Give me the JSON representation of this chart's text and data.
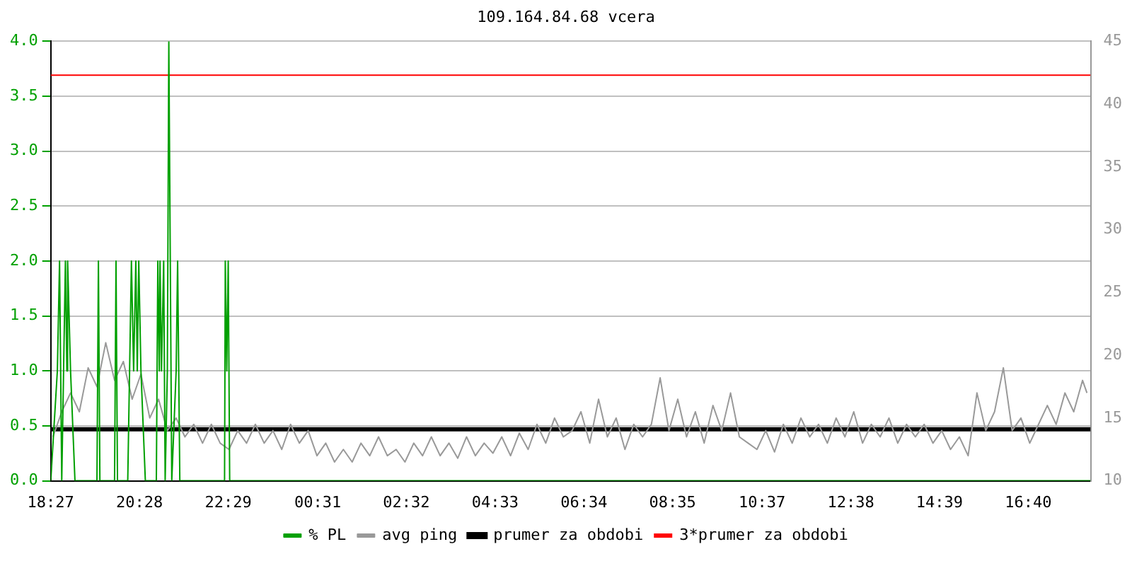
{
  "chart_data": {
    "type": "line",
    "title": "109.164.84.68 vcera",
    "xlim": [
      "--01-01T18:27",
      "--01-02T18:05"
    ],
    "xticks": [
      {
        "value": "--01-01T18:27",
        "label": "18:27"
      },
      {
        "value": "--01-01T20:28",
        "label": "20:28"
      },
      {
        "value": "--01-01T22:29",
        "label": "22:29"
      },
      {
        "value": "--01-02T00:31",
        "label": "00:31"
      },
      {
        "value": "--01-02T02:32",
        "label": "02:32"
      },
      {
        "value": "--01-02T04:33",
        "label": "04:33"
      },
      {
        "value": "--01-02T06:34",
        "label": "06:34"
      },
      {
        "value": "--01-02T08:35",
        "label": "08:35"
      },
      {
        "value": "--01-02T10:37",
        "label": "10:37"
      },
      {
        "value": "--01-02T12:38",
        "label": "12:38"
      },
      {
        "value": "--01-02T14:39",
        "label": "14:39"
      },
      {
        "value": "--01-02T16:40",
        "label": "16:40"
      }
    ],
    "ylim": [
      0,
      4
    ],
    "yticks": [
      {
        "value": 0,
        "label": "0.0"
      },
      {
        "value": 0.5,
        "label": "0.5"
      },
      {
        "value": 1,
        "label": "1.0"
      },
      {
        "value": 1.5,
        "label": "1.5"
      },
      {
        "value": 2,
        "label": "2.0"
      },
      {
        "value": 2.5,
        "label": "2.5"
      },
      {
        "value": 3,
        "label": "3.0"
      },
      {
        "value": 3.5,
        "label": "3.5"
      },
      {
        "value": 4,
        "label": "4.0"
      }
    ],
    "y2lim": [
      10,
      45
    ],
    "y2ticks": [
      10,
      15,
      20,
      25,
      30,
      35,
      40,
      45
    ],
    "grid": "y",
    "legend": "bottom",
    "marker": "none",
    "series": [
      {
        "name": "% PL",
        "color": "#00a000",
        "x": [
          "--01-01T18:27",
          "--01-01T18:36",
          "--01-01T18:39",
          "--01-01T18:42",
          "--01-01T18:47",
          "--01-01T18:49",
          "--01-01T18:50",
          "--01-01T18:54",
          "--01-01T19:00",
          "--01-01T19:30",
          "--01-01T19:32",
          "--01-01T19:34",
          "--01-01T19:54",
          "--01-01T19:56",
          "--01-01T19:58",
          "--01-01T20:12",
          "--01-01T20:17",
          "--01-01T20:20",
          "--01-01T20:23",
          "--01-01T20:25",
          "--01-01T20:27",
          "--01-01T20:30",
          "--01-01T20:36",
          "--01-01T20:51",
          "--01-01T20:53",
          "--01-01T20:55",
          "--01-01T20:56",
          "--01-01T20:58",
          "--01-01T21:01",
          "--01-01T21:03",
          "--01-01T21:06",
          "--01-01T21:08",
          "--01-01T21:12",
          "--01-01T21:18",
          "--01-01T21:20",
          "--01-01T21:23",
          "--01-01T21:36",
          "--01-01T22:24",
          "--01-01T22:25",
          "--01-01T22:27",
          "--01-01T22:29",
          "--01-01T22:31",
          "--01-01T23:00",
          "--01-02T18:05"
        ],
        "values": [
          0,
          1,
          2,
          0,
          2,
          1,
          2,
          1,
          0,
          0,
          2,
          0,
          0,
          2,
          0,
          0,
          2,
          1,
          2,
          1,
          2,
          1,
          0,
          0,
          2,
          1,
          2,
          1,
          2,
          0,
          1,
          4,
          0,
          1,
          2,
          0,
          0,
          0,
          2,
          1,
          2,
          0,
          0,
          0
        ]
      },
      {
        "name": "avg ping",
        "color": "#999999",
        "axis": "y2",
        "x": [
          "--01-01T18:30",
          "--01-01T18:42",
          "--01-01T18:54",
          "--01-01T19:06",
          "--01-01T19:18",
          "--01-01T19:30",
          "--01-01T19:42",
          "--01-01T19:54",
          "--01-01T20:06",
          "--01-01T20:18",
          "--01-01T20:30",
          "--01-01T20:42",
          "--01-01T20:54",
          "--01-01T21:06",
          "--01-01T21:18",
          "--01-01T21:30",
          "--01-01T21:42",
          "--01-01T21:54",
          "--01-01T22:06",
          "--01-01T22:18",
          "--01-01T22:30",
          "--01-01T22:42",
          "--01-01T22:54",
          "--01-01T23:06",
          "--01-01T23:18",
          "--01-01T23:30",
          "--01-01T23:42",
          "--01-01T23:54",
          "--01-02T00:06",
          "--01-02T00:18",
          "--01-02T00:30",
          "--01-02T00:42",
          "--01-02T00:54",
          "--01-02T01:06",
          "--01-02T01:18",
          "--01-02T01:30",
          "--01-02T01:42",
          "--01-02T01:54",
          "--01-02T02:06",
          "--01-02T02:18",
          "--01-02T02:30",
          "--01-02T02:42",
          "--01-02T02:54",
          "--01-02T03:06",
          "--01-02T03:18",
          "--01-02T03:30",
          "--01-02T03:42",
          "--01-02T03:54",
          "--01-02T04:06",
          "--01-02T04:18",
          "--01-02T04:30",
          "--01-02T04:42",
          "--01-02T04:54",
          "--01-02T05:06",
          "--01-02T05:18",
          "--01-02T05:30",
          "--01-02T05:42",
          "--01-02T05:54",
          "--01-02T06:06",
          "--01-02T06:18",
          "--01-02T06:30",
          "--01-02T06:42",
          "--01-02T06:54",
          "--01-02T07:06",
          "--01-02T07:18",
          "--01-02T07:30",
          "--01-02T07:42",
          "--01-02T07:54",
          "--01-02T08:06",
          "--01-02T08:18",
          "--01-02T08:30",
          "--01-02T08:42",
          "--01-02T08:54",
          "--01-02T09:06",
          "--01-02T09:18",
          "--01-02T09:30",
          "--01-02T09:42",
          "--01-02T09:54",
          "--01-02T10:06",
          "--01-02T10:18",
          "--01-02T10:30",
          "--01-02T10:42",
          "--01-02T10:54",
          "--01-02T11:06",
          "--01-02T11:18",
          "--01-02T11:30",
          "--01-02T11:42",
          "--01-02T11:54",
          "--01-02T12:06",
          "--01-02T12:18",
          "--01-02T12:30",
          "--01-02T12:42",
          "--01-02T12:54",
          "--01-02T13:06",
          "--01-02T13:18",
          "--01-02T13:30",
          "--01-02T13:42",
          "--01-02T13:54",
          "--01-02T14:06",
          "--01-02T14:18",
          "--01-02T14:30",
          "--01-02T14:42",
          "--01-02T14:54",
          "--01-02T15:06",
          "--01-02T15:18",
          "--01-02T15:30",
          "--01-02T15:42",
          "--01-02T15:54",
          "--01-02T16:06",
          "--01-02T16:18",
          "--01-02T16:30",
          "--01-02T16:42",
          "--01-02T16:54",
          "--01-02T17:06",
          "--01-02T17:18",
          "--01-02T17:30",
          "--01-02T17:42",
          "--01-02T17:54",
          "--01-02T18:00"
        ],
        "values": [
          13.5,
          15.5,
          17,
          15.5,
          19,
          17.5,
          21,
          18,
          19.5,
          16.5,
          18.5,
          15,
          16.5,
          14,
          15,
          13.5,
          14.5,
          13,
          14.5,
          13,
          12.5,
          14,
          13,
          14.5,
          13,
          14,
          12.5,
          14.5,
          13,
          14,
          12,
          13,
          11.5,
          12.5,
          11.5,
          13,
          12,
          13.5,
          12,
          12.5,
          11.5,
          13,
          12,
          13.5,
          12,
          13,
          11.8,
          13.5,
          12,
          13,
          12.2,
          13.5,
          12,
          13.8,
          12.5,
          14.5,
          13,
          15,
          13.5,
          14,
          15.5,
          13,
          16.5,
          13.5,
          15,
          12.5,
          14.5,
          13.5,
          14.5,
          18.2,
          14,
          16.5,
          13.5,
          15.5,
          13,
          16,
          14,
          17,
          13.5,
          13,
          12.5,
          14,
          12.3,
          14.5,
          13,
          15,
          13.5,
          14.5,
          13,
          15,
          13.5,
          15.5,
          13,
          14.5,
          13.5,
          15,
          13,
          14.5,
          13.5,
          14.5,
          13,
          14,
          12.5,
          13.5,
          12,
          17,
          14,
          15.5,
          19,
          14,
          15,
          13,
          14.5,
          16,
          14.5,
          17,
          15.5,
          18,
          17
        ]
      }
    ],
    "ref_lines": [
      {
        "axis": "y2",
        "value": 14.1,
        "label": "prumer za obdobi",
        "color": "#000000"
      },
      {
        "axis": "y2",
        "value": 42.3,
        "label": "3*prumer za obdobi",
        "color": "#ff0000"
      }
    ]
  }
}
